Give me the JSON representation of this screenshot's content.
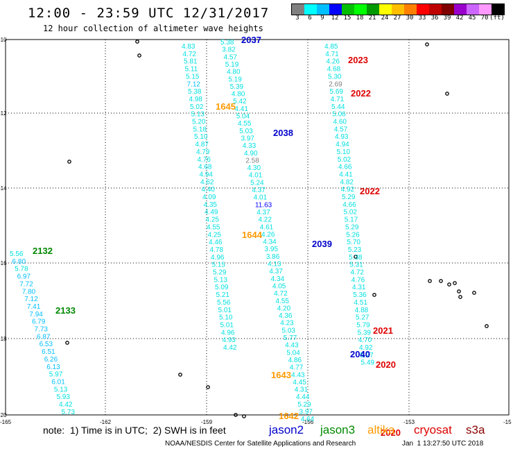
{
  "title": "12:00 - 23:59 UTC 12/31/2017",
  "subtitle": "12 hour collection of altimeter wave heights",
  "scale": {
    "colors": [
      "#808080",
      "#00ffff",
      "#00bfff",
      "#0000ff",
      "#00bf00",
      "#00ff00",
      "#009900",
      "#ffff00",
      "#ffbf00",
      "#ff8000",
      "#ff0000",
      "#bf0000",
      "#800000",
      "#9900cc",
      "#cc66ff",
      "#ff99ff",
      "#000000"
    ],
    "labels": [
      "3",
      "6",
      "9",
      "12",
      "15",
      "18",
      "21",
      "24",
      "27",
      "30",
      "33",
      "36",
      "39",
      "42",
      "45",
      "70",
      "(ft)"
    ]
  },
  "axes": {
    "lat_labels": [
      "-10",
      "-12",
      "-14",
      "-16",
      "-18",
      "-20"
    ],
    "lon_labels": [
      "-165",
      "-162",
      "-159",
      "-156",
      "-153",
      "-15"
    ]
  },
  "tracks": [
    {
      "color": "#00e0e0",
      "values": [
        "4.83",
        "4.72",
        "5.81",
        "5.11",
        "5.15",
        "7.12",
        "5.38",
        "4.98",
        "5.02",
        "5.13",
        "5.20",
        "5.18",
        "5.10",
        "4.87",
        "4.79",
        "4.76",
        "4.68",
        "4.94",
        "4.62",
        "4.40",
        "4.09",
        "4.35",
        "4.49",
        "4.25",
        "4.55",
        "4.25",
        "4.46",
        "4.78",
        "4.96",
        "5.15",
        "5.29",
        "5.13",
        "5.09",
        "5.21",
        "5.56",
        "5.01",
        "5.10",
        "5.01",
        "4.96",
        "4.93",
        "4.42"
      ]
    },
    {
      "color": "#00e0e0",
      "values": [
        "5.38",
        "3.82",
        "4.57",
        "5.19",
        "4.80",
        "5.19",
        "5.39",
        "4.80",
        "5.42",
        "4.41",
        "5.04",
        "4.55",
        "5.03",
        "3.97",
        "4.33",
        "4.90",
        "2.58",
        "4.30",
        "4.01",
        "5.24",
        "4.37",
        "4.01",
        "11.63",
        "4.37",
        "4.22",
        "4.61",
        "4.26",
        "4.34",
        "3.95",
        "3.86",
        "4.13",
        "4.37",
        "4.34",
        "4.05",
        "4.72",
        "4.55",
        "4.20",
        "4.36",
        "4.23",
        "5.03",
        "5.77",
        "4.43",
        "5.04",
        "4.86",
        "4.77",
        "4.43",
        "4.45",
        "4.31",
        "4.44",
        "5.29",
        "3.97",
        "4.64"
      ]
    },
    {
      "color": "#00e0e0",
      "values": [
        "4.85",
        "4.71",
        "4.26",
        "4.68",
        "5.30",
        "2.69",
        "5.69",
        "4.71",
        "5.44",
        "5.06",
        "4.60",
        "4.57",
        "4.93",
        "4.94",
        "5.10",
        "5.02",
        "4.66",
        "4.41",
        "4.82",
        "4.92",
        "5.29",
        "4.66",
        "5.02",
        "5.17",
        "5.29",
        "5.26",
        "5.70",
        "5.23",
        "5.38",
        "5.31",
        "4.72",
        "4.76",
        "4.31",
        "5.36",
        "4.51",
        "4.88",
        "5.27",
        "5.79",
        "5.39",
        "4.70",
        "4.92",
        "5.27",
        "5.49"
      ]
    },
    {
      "color": "#00e0e0",
      "values": [
        "5.56",
        "6.80",
        "5.78",
        "6.97",
        "7.72",
        "7.80",
        "7.12",
        "7.41",
        "7.94",
        "6.79",
        "7.73",
        "6.87",
        "6.53",
        "6.51",
        "6.26",
        "6.13",
        "5.97",
        "6.01",
        "5.13",
        "5.93",
        "4.42",
        "5.73"
      ]
    }
  ],
  "pass_labels": [
    {
      "text": "2037",
      "color": "#0000cc"
    },
    {
      "text": "2023",
      "color": "#dd0000"
    },
    {
      "text": "2022",
      "color": "#dd0000"
    },
    {
      "text": "1645",
      "color": "#ff9900"
    },
    {
      "text": "2038",
      "color": "#0000cc"
    },
    {
      "text": "2022",
      "color": "#dd0000"
    },
    {
      "text": "1644",
      "color": "#ff9900"
    },
    {
      "text": "2132",
      "color": "#008800"
    },
    {
      "text": "2039",
      "color": "#0000cc"
    },
    {
      "text": "2133",
      "color": "#008800"
    },
    {
      "text": "2021",
      "color": "#dd0000"
    },
    {
      "text": "2040",
      "color": "#0000cc"
    },
    {
      "text": "2020",
      "color": "#dd0000"
    },
    {
      "text": "1643",
      "color": "#ff9900"
    },
    {
      "text": "1642",
      "color": "#ff9900"
    },
    {
      "text": "2020",
      "color": "#dd0000"
    }
  ],
  "footer": {
    "note": "note:  1) Time is in UTC;  2) SWH is in feet",
    "legend": [
      {
        "text": "jason2",
        "color": "#0000cc"
      },
      {
        "text": "jason3",
        "color": "#008800"
      },
      {
        "text": "altika",
        "color": "#ff9900"
      },
      {
        "text": "cryosat",
        "color": "#dd0000"
      },
      {
        "text": "s3a",
        "color": "#8b0000"
      }
    ],
    "credit": "NOAA/NESDIS Center for Satellite Applications and Research",
    "timestamp": "Jan  1 13:27:50 UTC 2018"
  }
}
